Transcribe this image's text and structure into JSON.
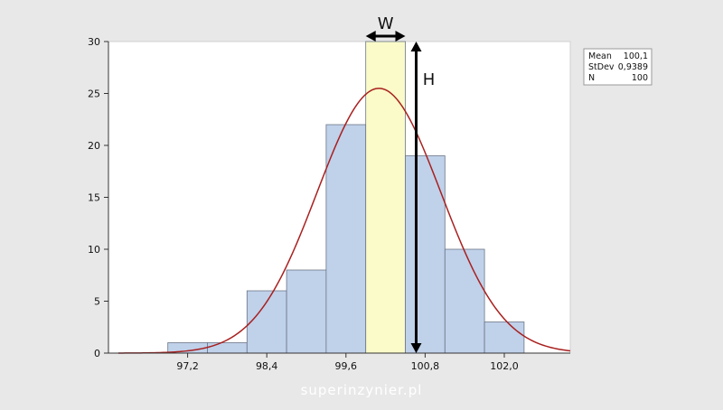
{
  "chart_data": {
    "type": "bar",
    "bins": [
      {
        "from": 96.9,
        "to": 97.5,
        "count": 1
      },
      {
        "from": 97.5,
        "to": 98.1,
        "count": 1
      },
      {
        "from": 98.1,
        "to": 98.7,
        "count": 6
      },
      {
        "from": 98.7,
        "to": 99.3,
        "count": 8
      },
      {
        "from": 99.3,
        "to": 99.9,
        "count": 22
      },
      {
        "from": 99.9,
        "to": 100.5,
        "count": 30
      },
      {
        "from": 100.5,
        "to": 101.1,
        "count": 19
      },
      {
        "from": 101.1,
        "to": 101.7,
        "count": 10
      },
      {
        "from": 101.7,
        "to": 102.3,
        "count": 3
      }
    ],
    "highlight_bin": 5,
    "xlim": [
      96.0,
      103.0
    ],
    "ylim": [
      0,
      30
    ],
    "x_ticks": [
      97.2,
      98.4,
      99.6,
      100.8,
      102.0
    ],
    "x_tick_labels": [
      "97,2",
      "98,4",
      "99,6",
      "100,8",
      "102,0"
    ],
    "y_ticks": [
      0,
      5,
      10,
      15,
      20,
      25,
      30
    ],
    "y_tick_labels": [
      "0",
      "5",
      "10",
      "15",
      "20",
      "25",
      "30"
    ],
    "fit_curve": {
      "type": "normal",
      "mean": 100.1,
      "stdev": 0.9389,
      "n": 100,
      "bin_width": 0.6
    },
    "grid": false,
    "colors": {
      "bar_fill": "#c0d1ea",
      "bar_stroke": "#6b7587",
      "highlight_fill": "#fafbc8",
      "curve": "#a8201f",
      "plot_bg": "#ffffff",
      "annotation": "#000000"
    },
    "stats_box": {
      "rows": [
        {
          "label": "Mean",
          "value": "100,1"
        },
        {
          "label": "StDev",
          "value": "0,9389"
        },
        {
          "label": "N",
          "value": "100"
        }
      ]
    },
    "annotations": {
      "width_label": "W",
      "height_label": "H"
    }
  },
  "watermark": "superinzynier.pl"
}
